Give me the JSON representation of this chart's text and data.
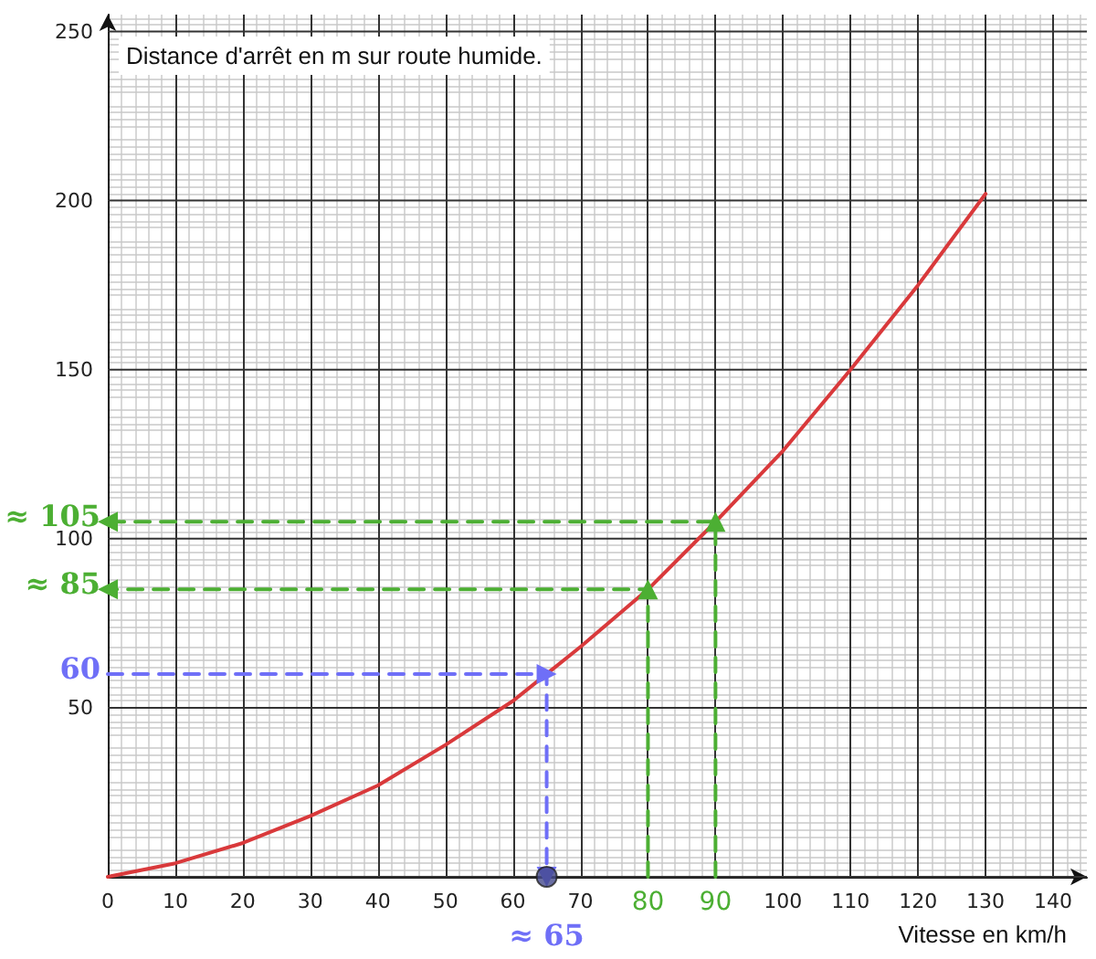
{
  "chart_data": {
    "type": "line",
    "title": "Distance d'arrêt en m sur route humide.",
    "xlabel": "Vitesse en km/h",
    "xlim": [
      0,
      145
    ],
    "ylim": [
      0,
      255
    ],
    "xticks": [
      0,
      10,
      20,
      30,
      40,
      50,
      60,
      70,
      {
        "value": 80,
        "label": null
      },
      {
        "value": 90,
        "label": null
      },
      100,
      110,
      120,
      130,
      140
    ],
    "yticks": [
      {
        "value": 0,
        "label": null
      },
      50,
      100,
      150,
      200,
      250
    ],
    "grid": true,
    "series": [
      {
        "color": "#d9393b",
        "x": [
          0,
          10,
          20,
          30,
          40,
          50,
          60,
          65,
          70,
          80,
          90,
          100,
          110,
          120,
          130
        ],
        "values": [
          0,
          4,
          10,
          18,
          27,
          39,
          52,
          60,
          68,
          85,
          105,
          126,
          150,
          175,
          202
        ],
        "marker": "none",
        "line_style": "solid"
      },
      {
        "color": "#6f6ff7",
        "x": [
          0,
          65,
          65
        ],
        "values": [
          60,
          60,
          0
        ],
        "marker": "triangle",
        "line_style": "dashed"
      },
      {
        "color": "#4caf33",
        "x": [
          80,
          80,
          0
        ],
        "values": [
          0,
          85,
          85
        ],
        "marker": "triangle",
        "line_style": "dashed"
      },
      {
        "color": "#4caf33",
        "x": [
          90,
          90,
          0
        ],
        "values": [
          0,
          105,
          105
        ],
        "marker": "triangle",
        "line_style": "dashed"
      },
      {
        "type": "scatter",
        "color": "#454a8c",
        "x": [
          65
        ],
        "values": [
          0
        ],
        "marker": "circle"
      }
    ],
    "annotations": [
      {
        "text": "60",
        "x": 0,
        "y": 60
      },
      {
        "text": "≈ 85",
        "x": 0,
        "y": 85
      },
      {
        "text": "≈ 105",
        "x": 0,
        "y": 105
      },
      {
        "text": "≈ 65",
        "x": 65,
        "y": 0
      },
      {
        "text": "80",
        "x": 80,
        "y": 0
      },
      {
        "text": "90",
        "x": 90,
        "y": 0
      }
    ]
  }
}
